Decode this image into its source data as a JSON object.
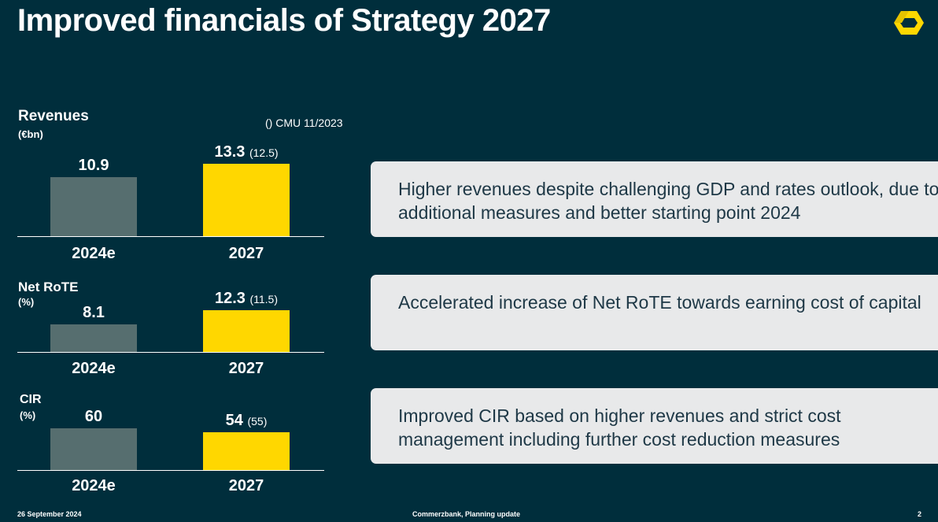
{
  "header": {
    "title": "Improved financials of Strategy 2027"
  },
  "note": "() CMU 11/2023",
  "colors": {
    "background": "#002e3c",
    "bar_2024e": "#566e6f",
    "bar_2027": "#ffd700",
    "callout_bg": "#e8e9ea",
    "callout_text": "#1e3846",
    "logo": "#ffd700"
  },
  "logo_icon": "commerzbank-ribbon-logo",
  "chart_data": [
    {
      "type": "bar",
      "title": "Revenues",
      "unit": "(€bn)",
      "categories": [
        "2024e",
        "2027"
      ],
      "values": [
        10.9,
        13.3
      ],
      "labels": [
        "10.9",
        "13.3"
      ],
      "previous_target": [
        null,
        "(12.5)"
      ],
      "ylim": [
        0,
        13.3
      ]
    },
    {
      "type": "bar",
      "title": "Net RoTE",
      "unit": "(%)",
      "categories": [
        "2024e",
        "2027"
      ],
      "values": [
        8.1,
        12.3
      ],
      "labels": [
        "8.1",
        "12.3"
      ],
      "previous_target": [
        null,
        "(11.5)"
      ],
      "ylim": [
        0,
        12.3
      ]
    },
    {
      "type": "bar",
      "title": "CIR",
      "unit": "(%)",
      "categories": [
        "2024e",
        "2027"
      ],
      "values": [
        60,
        54
      ],
      "labels": [
        "60",
        "54"
      ],
      "previous_target": [
        null,
        "(55)"
      ],
      "ylim": [
        0,
        60
      ]
    }
  ],
  "callouts": [
    "Higher revenues despite challenging GDP and rates outlook, due to additional measures and better starting point 2024",
    "Accelerated increase of Net RoTE towards earning cost of capital",
    "Improved CIR based on higher revenues and strict cost management including further cost reduction measures"
  ],
  "footer": {
    "date": "26 September 2024",
    "source": "Commerzbank, Planning update",
    "page": "2"
  }
}
